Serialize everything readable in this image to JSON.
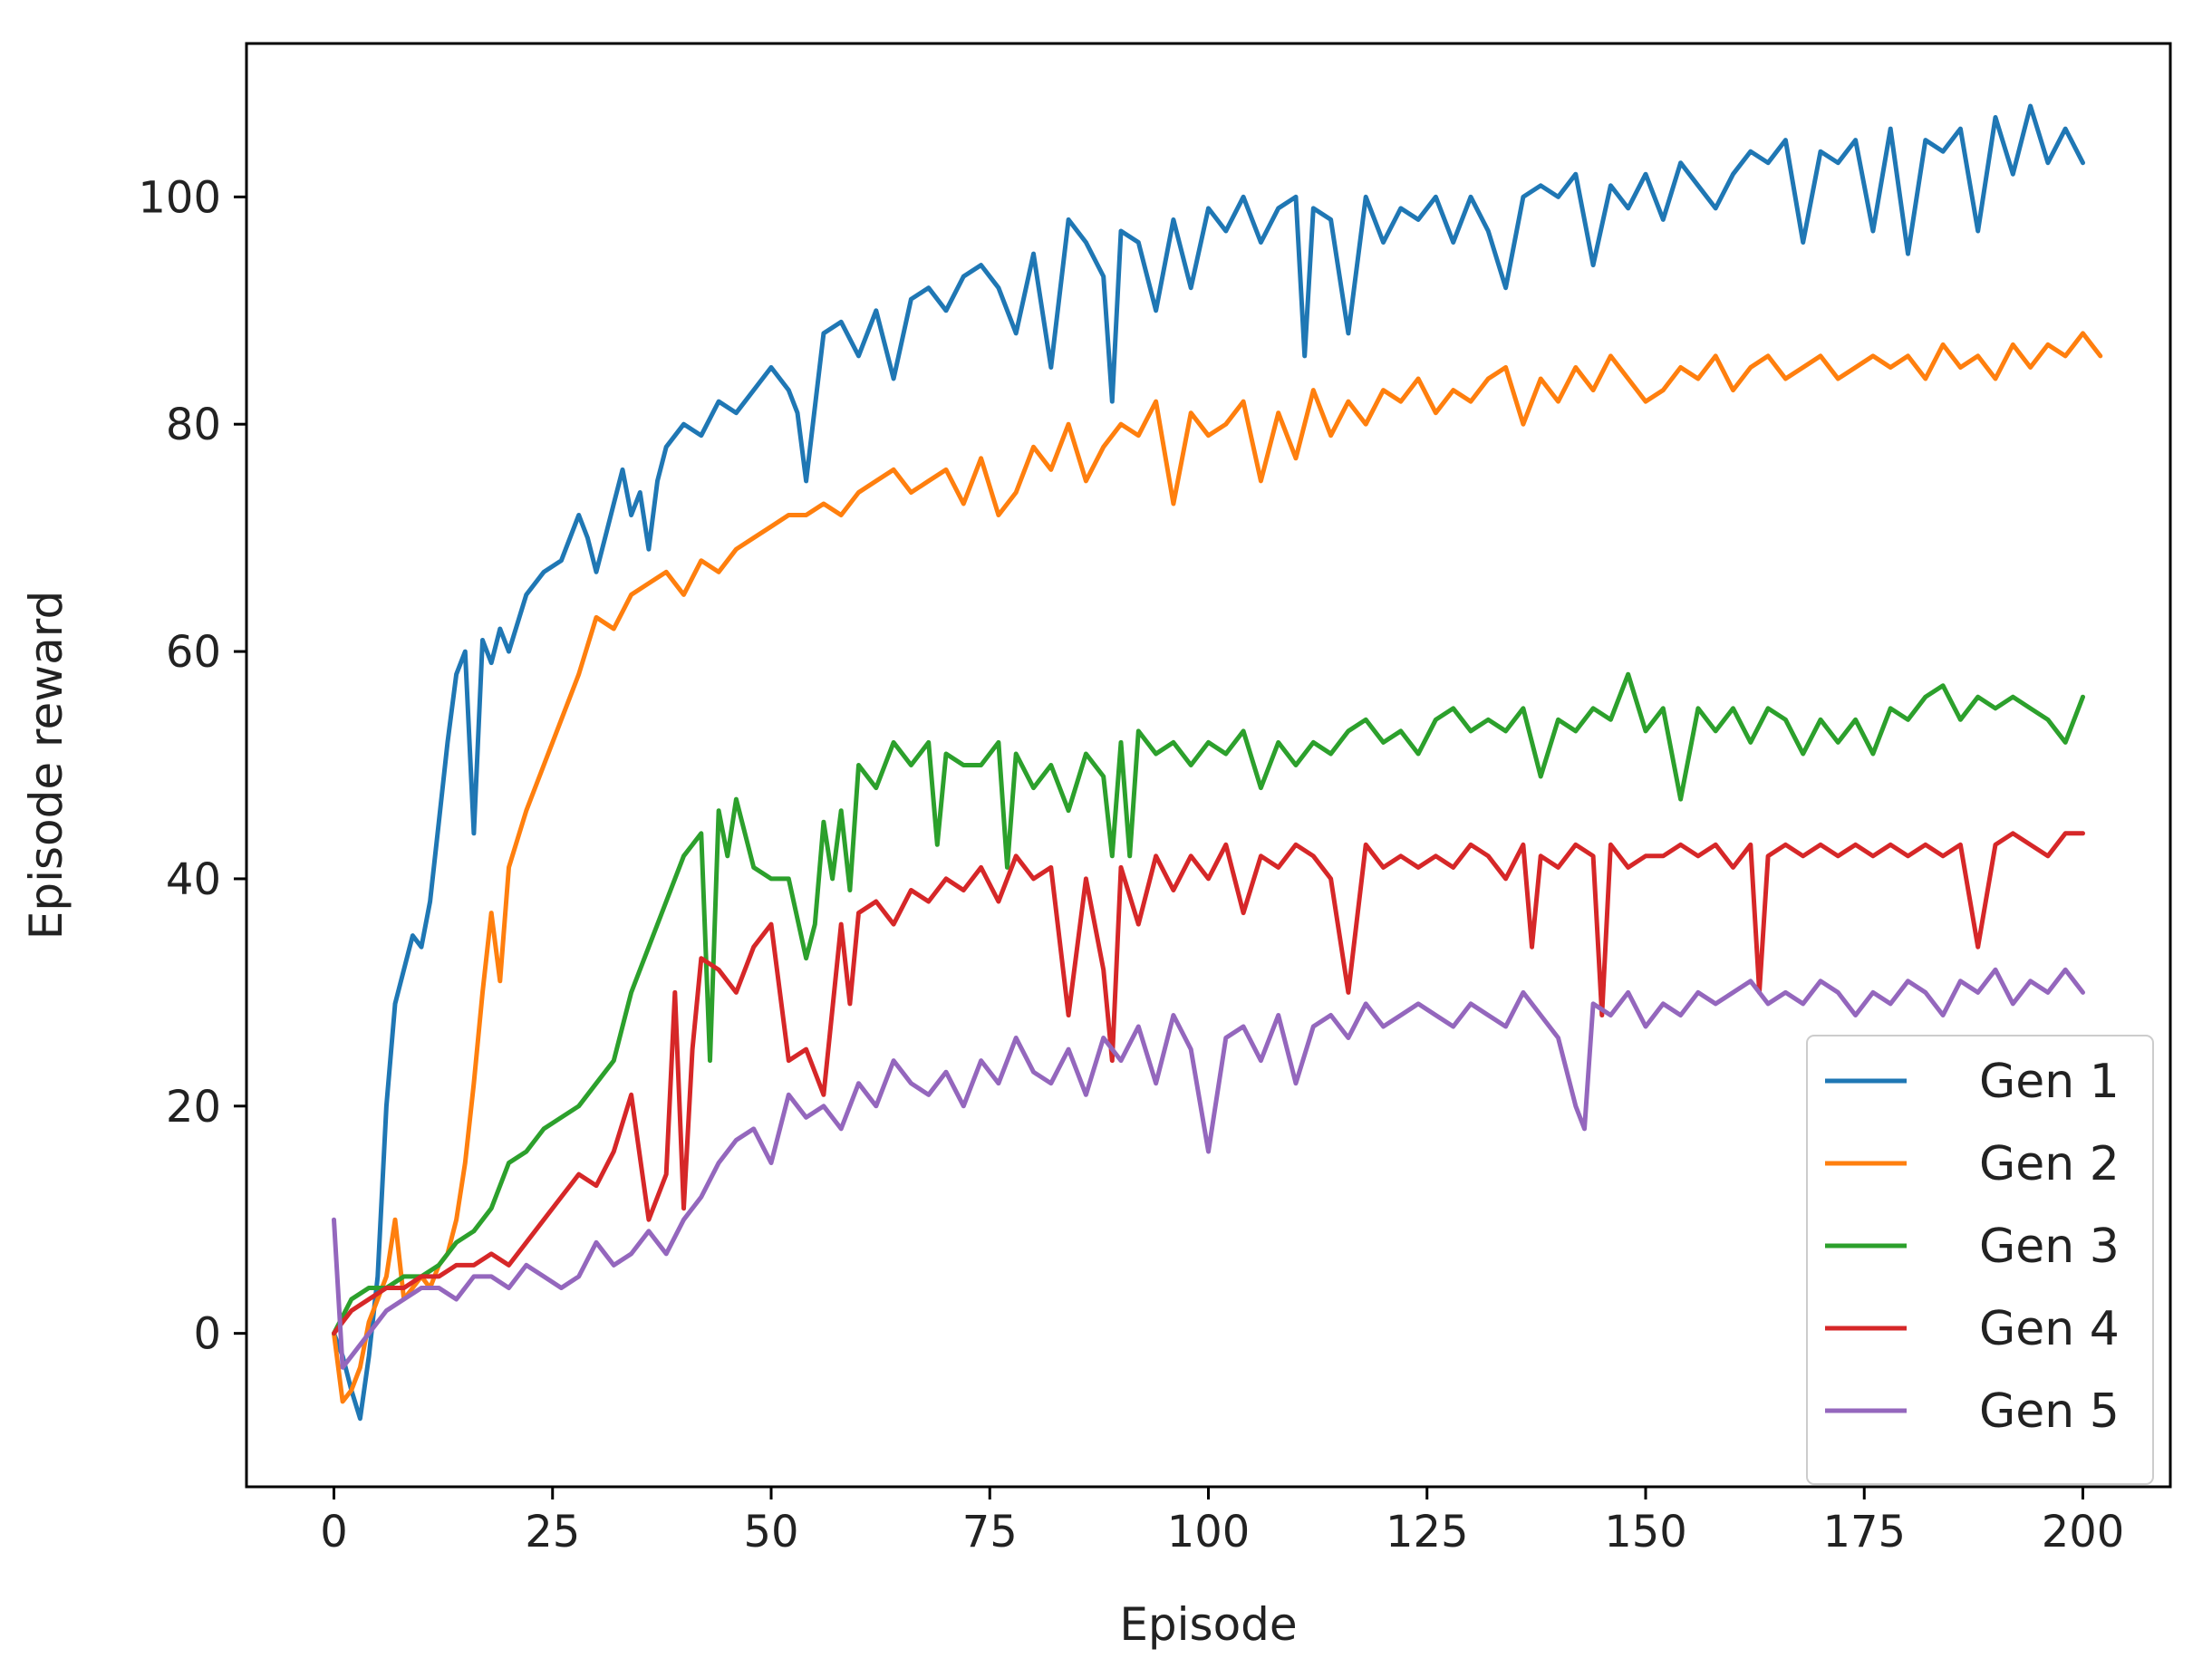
{
  "chart_data": {
    "type": "line",
    "title": "",
    "xlabel": "Episode",
    "ylabel": "Episode reward",
    "xlim": [
      -10,
      210
    ],
    "ylim": [
      -13.5,
      113.5
    ],
    "x_ticks": [
      0,
      25,
      50,
      75,
      100,
      125,
      150,
      175,
      200
    ],
    "y_ticks": [
      0,
      20,
      40,
      60,
      80,
      100
    ],
    "grid": false,
    "legend_position": "lower-right",
    "series": [
      {
        "name": "Gen 1",
        "color": "#1f77b4",
        "x": [
          0,
          1,
          2,
          3,
          4,
          5,
          6,
          7,
          8,
          9,
          10,
          11,
          12,
          13,
          14,
          15,
          16,
          17,
          18,
          19,
          20,
          22,
          24,
          26,
          28,
          29,
          30,
          31,
          32,
          33,
          34,
          35,
          36,
          37,
          38,
          40,
          42,
          44,
          46,
          48,
          50,
          52,
          53,
          54,
          56,
          58,
          60,
          62,
          64,
          66,
          68,
          70,
          72,
          74,
          76,
          78,
          80,
          82,
          84,
          86,
          88,
          89,
          90,
          92,
          94,
          96,
          98,
          100,
          102,
          104,
          106,
          108,
          110,
          111,
          112,
          114,
          116,
          118,
          120,
          122,
          124,
          126,
          128,
          130,
          132,
          134,
          136,
          138,
          140,
          142,
          144,
          146,
          148,
          150,
          152,
          154,
          156,
          158,
          160,
          162,
          164,
          166,
          168,
          170,
          172,
          174,
          176,
          178,
          180,
          182,
          184,
          186,
          188,
          190,
          192,
          194,
          196,
          198,
          200
        ],
        "values": [
          0,
          -2,
          -5,
          -7.5,
          -2,
          5,
          20,
          29,
          32,
          35,
          34,
          38,
          45,
          52,
          58,
          60,
          44,
          61,
          59,
          62,
          60,
          65,
          67,
          68,
          72,
          70,
          67,
          70,
          73,
          76,
          72,
          74,
          69,
          75,
          78,
          80,
          79,
          82,
          81,
          83,
          85,
          83,
          81,
          75,
          88,
          89,
          86,
          90,
          84,
          91,
          92,
          90,
          93,
          94,
          92,
          88,
          95,
          85,
          98,
          96,
          93,
          82,
          97,
          96,
          90,
          98,
          92,
          99,
          97,
          100,
          96,
          99,
          100,
          86,
          99,
          98,
          88,
          100,
          96,
          99,
          98,
          100,
          96,
          100,
          97,
          92,
          100,
          101,
          100,
          102,
          94,
          101,
          99,
          102,
          98,
          103,
          101,
          99,
          102,
          104,
          103,
          105,
          96,
          104,
          103,
          105,
          97,
          106,
          95,
          105,
          104,
          106,
          97,
          107,
          102,
          108,
          103,
          106,
          103
        ]
      },
      {
        "name": "Gen 2",
        "color": "#ff7f0e",
        "x": [
          0,
          1,
          2,
          3,
          4,
          5,
          6,
          7,
          8,
          9,
          10,
          11,
          12,
          13,
          14,
          15,
          16,
          17,
          18,
          19,
          20,
          22,
          24,
          26,
          28,
          30,
          32,
          34,
          36,
          38,
          40,
          42,
          44,
          46,
          48,
          50,
          52,
          54,
          56,
          58,
          60,
          62,
          64,
          66,
          68,
          70,
          72,
          74,
          76,
          78,
          80,
          82,
          84,
          86,
          88,
          90,
          92,
          94,
          96,
          98,
          100,
          102,
          104,
          106,
          108,
          110,
          112,
          114,
          116,
          118,
          120,
          122,
          124,
          126,
          128,
          130,
          132,
          134,
          136,
          138,
          140,
          142,
          144,
          146,
          148,
          150,
          152,
          154,
          156,
          158,
          160,
          162,
          164,
          166,
          168,
          170,
          172,
          174,
          176,
          178,
          180,
          182,
          184,
          186,
          188,
          190,
          192,
          194,
          196,
          198,
          200,
          202
        ],
        "values": [
          0,
          -6,
          -5,
          -3,
          1,
          3,
          5,
          10,
          3,
          4,
          5,
          4,
          6,
          7,
          10,
          15,
          22,
          30,
          37,
          31,
          41,
          46,
          50,
          54,
          58,
          63,
          62,
          65,
          66,
          67,
          65,
          68,
          67,
          69,
          70,
          71,
          72,
          72,
          73,
          72,
          74,
          75,
          76,
          74,
          75,
          76,
          73,
          77,
          72,
          74,
          78,
          76,
          80,
          75,
          78,
          80,
          79,
          82,
          73,
          81,
          79,
          80,
          82,
          75,
          81,
          77,
          83,
          79,
          82,
          80,
          83,
          82,
          84,
          81,
          83,
          82,
          84,
          85,
          80,
          84,
          82,
          85,
          83,
          86,
          84,
          82,
          83,
          85,
          84,
          86,
          83,
          85,
          86,
          84,
          85,
          86,
          84,
          85,
          86,
          85,
          86,
          84,
          87,
          85,
          86,
          84,
          87,
          85,
          87,
          86,
          88,
          86
        ]
      },
      {
        "name": "Gen 3",
        "color": "#2ca02c",
        "x": [
          0,
          2,
          4,
          6,
          8,
          10,
          12,
          14,
          16,
          18,
          20,
          22,
          24,
          26,
          28,
          30,
          32,
          34,
          36,
          38,
          40,
          42,
          43,
          44,
          45,
          46,
          48,
          50,
          52,
          54,
          55,
          56,
          57,
          58,
          59,
          60,
          62,
          64,
          66,
          68,
          69,
          70,
          72,
          74,
          76,
          77,
          78,
          80,
          82,
          84,
          86,
          88,
          89,
          90,
          91,
          92,
          94,
          96,
          98,
          100,
          102,
          104,
          106,
          108,
          110,
          112,
          114,
          116,
          118,
          120,
          122,
          124,
          126,
          128,
          130,
          132,
          134,
          136,
          138,
          140,
          142,
          144,
          146,
          148,
          150,
          152,
          154,
          156,
          158,
          160,
          162,
          164,
          166,
          168,
          170,
          172,
          174,
          176,
          178,
          180,
          182,
          184,
          186,
          188,
          190,
          192,
          194,
          196,
          198,
          200
        ],
        "values": [
          0,
          3,
          4,
          4,
          5,
          5,
          6,
          8,
          9,
          11,
          15,
          16,
          18,
          19,
          20,
          22,
          24,
          30,
          34,
          38,
          42,
          44,
          24,
          46,
          42,
          47,
          41,
          40,
          40,
          33,
          36,
          45,
          40,
          46,
          39,
          50,
          48,
          52,
          50,
          52,
          43,
          51,
          50,
          50,
          52,
          41,
          51,
          48,
          50,
          46,
          51,
          49,
          42,
          52,
          42,
          53,
          51,
          52,
          50,
          52,
          51,
          53,
          48,
          52,
          50,
          52,
          51,
          53,
          54,
          52,
          53,
          51,
          54,
          55,
          53,
          54,
          53,
          55,
          49,
          54,
          53,
          55,
          54,
          58,
          53,
          55,
          47,
          55,
          53,
          55,
          52,
          55,
          54,
          51,
          54,
          52,
          54,
          51,
          55,
          54,
          56,
          57,
          54,
          56,
          55,
          56,
          55,
          54,
          52,
          56
        ]
      },
      {
        "name": "Gen 4",
        "color": "#d62728",
        "x": [
          0,
          2,
          4,
          6,
          8,
          10,
          12,
          14,
          16,
          18,
          20,
          22,
          24,
          26,
          28,
          30,
          32,
          34,
          36,
          38,
          39,
          40,
          41,
          42,
          44,
          46,
          48,
          50,
          52,
          54,
          56,
          58,
          59,
          60,
          62,
          64,
          66,
          68,
          70,
          72,
          74,
          76,
          78,
          80,
          82,
          84,
          86,
          88,
          89,
          90,
          92,
          94,
          96,
          98,
          100,
          102,
          104,
          106,
          108,
          110,
          112,
          114,
          116,
          118,
          120,
          122,
          124,
          126,
          128,
          130,
          132,
          134,
          136,
          137,
          138,
          140,
          142,
          144,
          145,
          146,
          148,
          150,
          152,
          154,
          156,
          158,
          160,
          162,
          163,
          164,
          166,
          168,
          170,
          172,
          174,
          176,
          178,
          180,
          182,
          184,
          186,
          188,
          190,
          192,
          194,
          196,
          198,
          200
        ],
        "values": [
          0,
          2,
          3,
          4,
          4,
          5,
          5,
          6,
          6,
          7,
          6,
          8,
          10,
          12,
          14,
          13,
          16,
          21,
          10,
          14,
          30,
          11,
          25,
          33,
          32,
          30,
          34,
          36,
          24,
          25,
          21,
          36,
          29,
          37,
          38,
          36,
          39,
          38,
          40,
          39,
          41,
          38,
          42,
          40,
          41,
          28,
          40,
          32,
          24,
          41,
          36,
          42,
          39,
          42,
          40,
          43,
          37,
          42,
          41,
          43,
          42,
          40,
          30,
          43,
          41,
          42,
          41,
          42,
          41,
          43,
          42,
          40,
          43,
          34,
          42,
          41,
          43,
          42,
          28,
          43,
          41,
          42,
          42,
          43,
          42,
          43,
          41,
          43,
          30,
          42,
          43,
          42,
          43,
          42,
          43,
          42,
          43,
          42,
          43,
          42,
          43,
          34,
          43,
          44,
          43,
          42,
          44,
          44
        ]
      },
      {
        "name": "Gen 5",
        "color": "#9467bd",
        "x": [
          0,
          1,
          2,
          4,
          6,
          8,
          10,
          12,
          14,
          16,
          18,
          20,
          22,
          24,
          26,
          28,
          30,
          32,
          34,
          36,
          38,
          40,
          42,
          44,
          46,
          48,
          50,
          52,
          54,
          56,
          58,
          60,
          62,
          64,
          66,
          68,
          70,
          72,
          74,
          76,
          78,
          80,
          82,
          84,
          86,
          88,
          90,
          92,
          94,
          96,
          98,
          100,
          102,
          104,
          106,
          108,
          110,
          112,
          114,
          116,
          118,
          120,
          122,
          124,
          126,
          128,
          130,
          132,
          134,
          136,
          138,
          140,
          142,
          143,
          144,
          146,
          148,
          150,
          152,
          154,
          156,
          158,
          160,
          162,
          164,
          166,
          168,
          170,
          172,
          174,
          176,
          178,
          180,
          182,
          184,
          186,
          188,
          190,
          192,
          194,
          196,
          198,
          200
        ],
        "values": [
          10,
          -3,
          -2,
          0,
          2,
          3,
          4,
          4,
          3,
          5,
          5,
          4,
          6,
          5,
          4,
          5,
          8,
          6,
          7,
          9,
          7,
          10,
          12,
          15,
          17,
          18,
          15,
          21,
          19,
          20,
          18,
          22,
          20,
          24,
          22,
          21,
          23,
          20,
          24,
          22,
          26,
          23,
          22,
          25,
          21,
          26,
          24,
          27,
          22,
          28,
          25,
          16,
          26,
          27,
          24,
          28,
          22,
          27,
          28,
          26,
          29,
          27,
          28,
          29,
          28,
          27,
          29,
          28,
          27,
          30,
          28,
          26,
          20,
          18,
          29,
          28,
          30,
          27,
          29,
          28,
          30,
          29,
          30,
          31,
          29,
          30,
          29,
          31,
          30,
          28,
          30,
          29,
          31,
          30,
          28,
          31,
          30,
          32,
          29,
          31,
          30,
          32,
          30
        ]
      }
    ]
  }
}
